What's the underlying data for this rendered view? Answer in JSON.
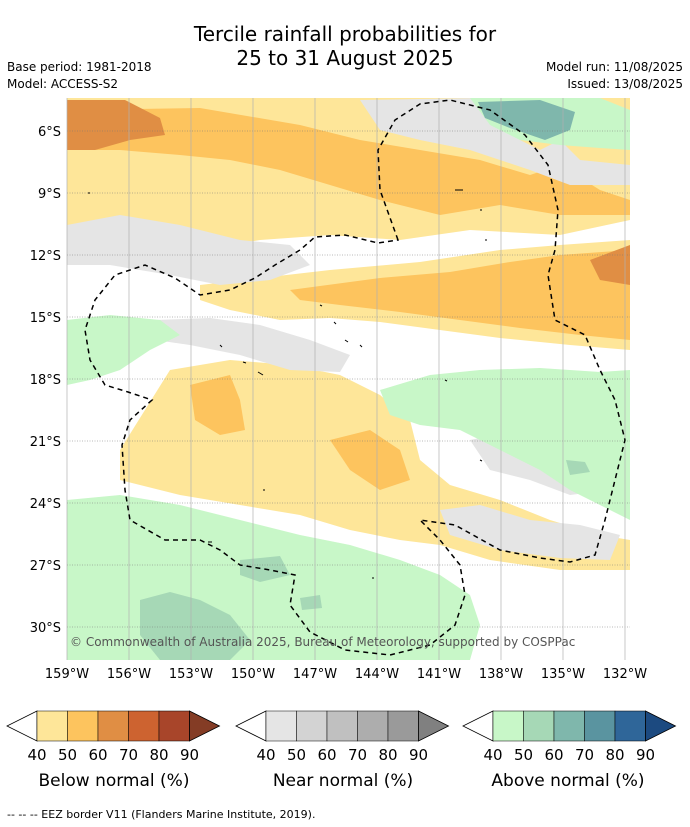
{
  "title_line1": "Tercile rainfall probabilities for",
  "title_line2": "25 to 31 August 2025",
  "base_period": "Base period: 1981-2018",
  "model": "Model: ACCESS-S2",
  "model_run": "Model run: 11/08/2025",
  "issued": "Issued: 13/08/2025",
  "copyright": "© Commonwealth of Australia 2025, Bureau of Meteorology, supported by COSPPac",
  "lat_labels": [
    "6°S",
    "9°S",
    "12°S",
    "15°S",
    "18°S",
    "21°S",
    "24°S",
    "27°S",
    "30°S"
  ],
  "lon_labels": [
    "159°W",
    "156°W",
    "153°W",
    "150°W",
    "147°W",
    "144°W",
    "141°W",
    "138°W",
    "135°W",
    "132°W"
  ],
  "colorbars": [
    {
      "name": "Below normal (%)",
      "ticks": [
        "40",
        "50",
        "60",
        "70",
        "80",
        "90"
      ],
      "colors": [
        "#fee699",
        "#fdc45e",
        "#e08e44",
        "#cd6330",
        "#a8452a",
        "#843c25"
      ]
    },
    {
      "name": "Near normal (%)",
      "ticks": [
        "40",
        "50",
        "60",
        "70",
        "80",
        "90"
      ],
      "colors": [
        "#e5e5e5",
        "#d3d3d3",
        "#c0c0c0",
        "#adadad",
        "#9a9a9a",
        "#808080"
      ]
    },
    {
      "name": "Above normal (%)",
      "ticks": [
        "40",
        "50",
        "60",
        "70",
        "80",
        "90"
      ],
      "colors": [
        "#c8f7c8",
        "#a6d8b6",
        "#7fb7ac",
        "#5a94a0",
        "#2f6699",
        "#1c4a80"
      ]
    }
  ],
  "footer": "--  --  -- EEZ border V11 (Flanders Marine Institute, 2019)."
}
